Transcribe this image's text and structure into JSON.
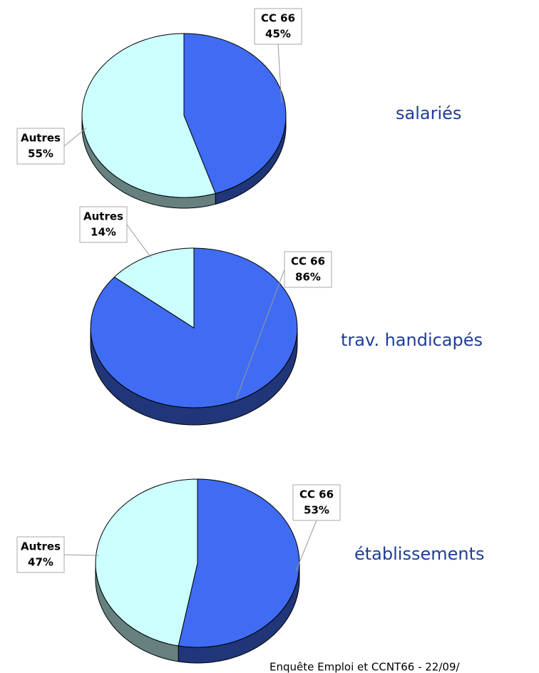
{
  "chart_data": [
    {
      "type": "pie",
      "title": "salariés",
      "categories": [
        "CC 66",
        "Autres"
      ],
      "values": [
        45,
        55
      ],
      "value_labels": [
        "45%",
        "55%"
      ],
      "colors": [
        "#3f6cf2",
        "#ccffff"
      ]
    },
    {
      "type": "pie",
      "title": "trav. handicapés",
      "categories": [
        "CC 66",
        "Autres"
      ],
      "values": [
        86,
        14
      ],
      "value_labels": [
        "86%",
        "14%"
      ],
      "colors": [
        "#3f6cf2",
        "#ccffff"
      ]
    },
    {
      "type": "pie",
      "title": "établissements",
      "categories": [
        "CC 66",
        "Autres"
      ],
      "values": [
        53,
        47
      ],
      "value_labels": [
        "53%",
        "47%"
      ],
      "colors": [
        "#3f6cf2",
        "#ccffff"
      ]
    }
  ],
  "footer": "Enquête Emploi et CCNT66 - 22/09/"
}
